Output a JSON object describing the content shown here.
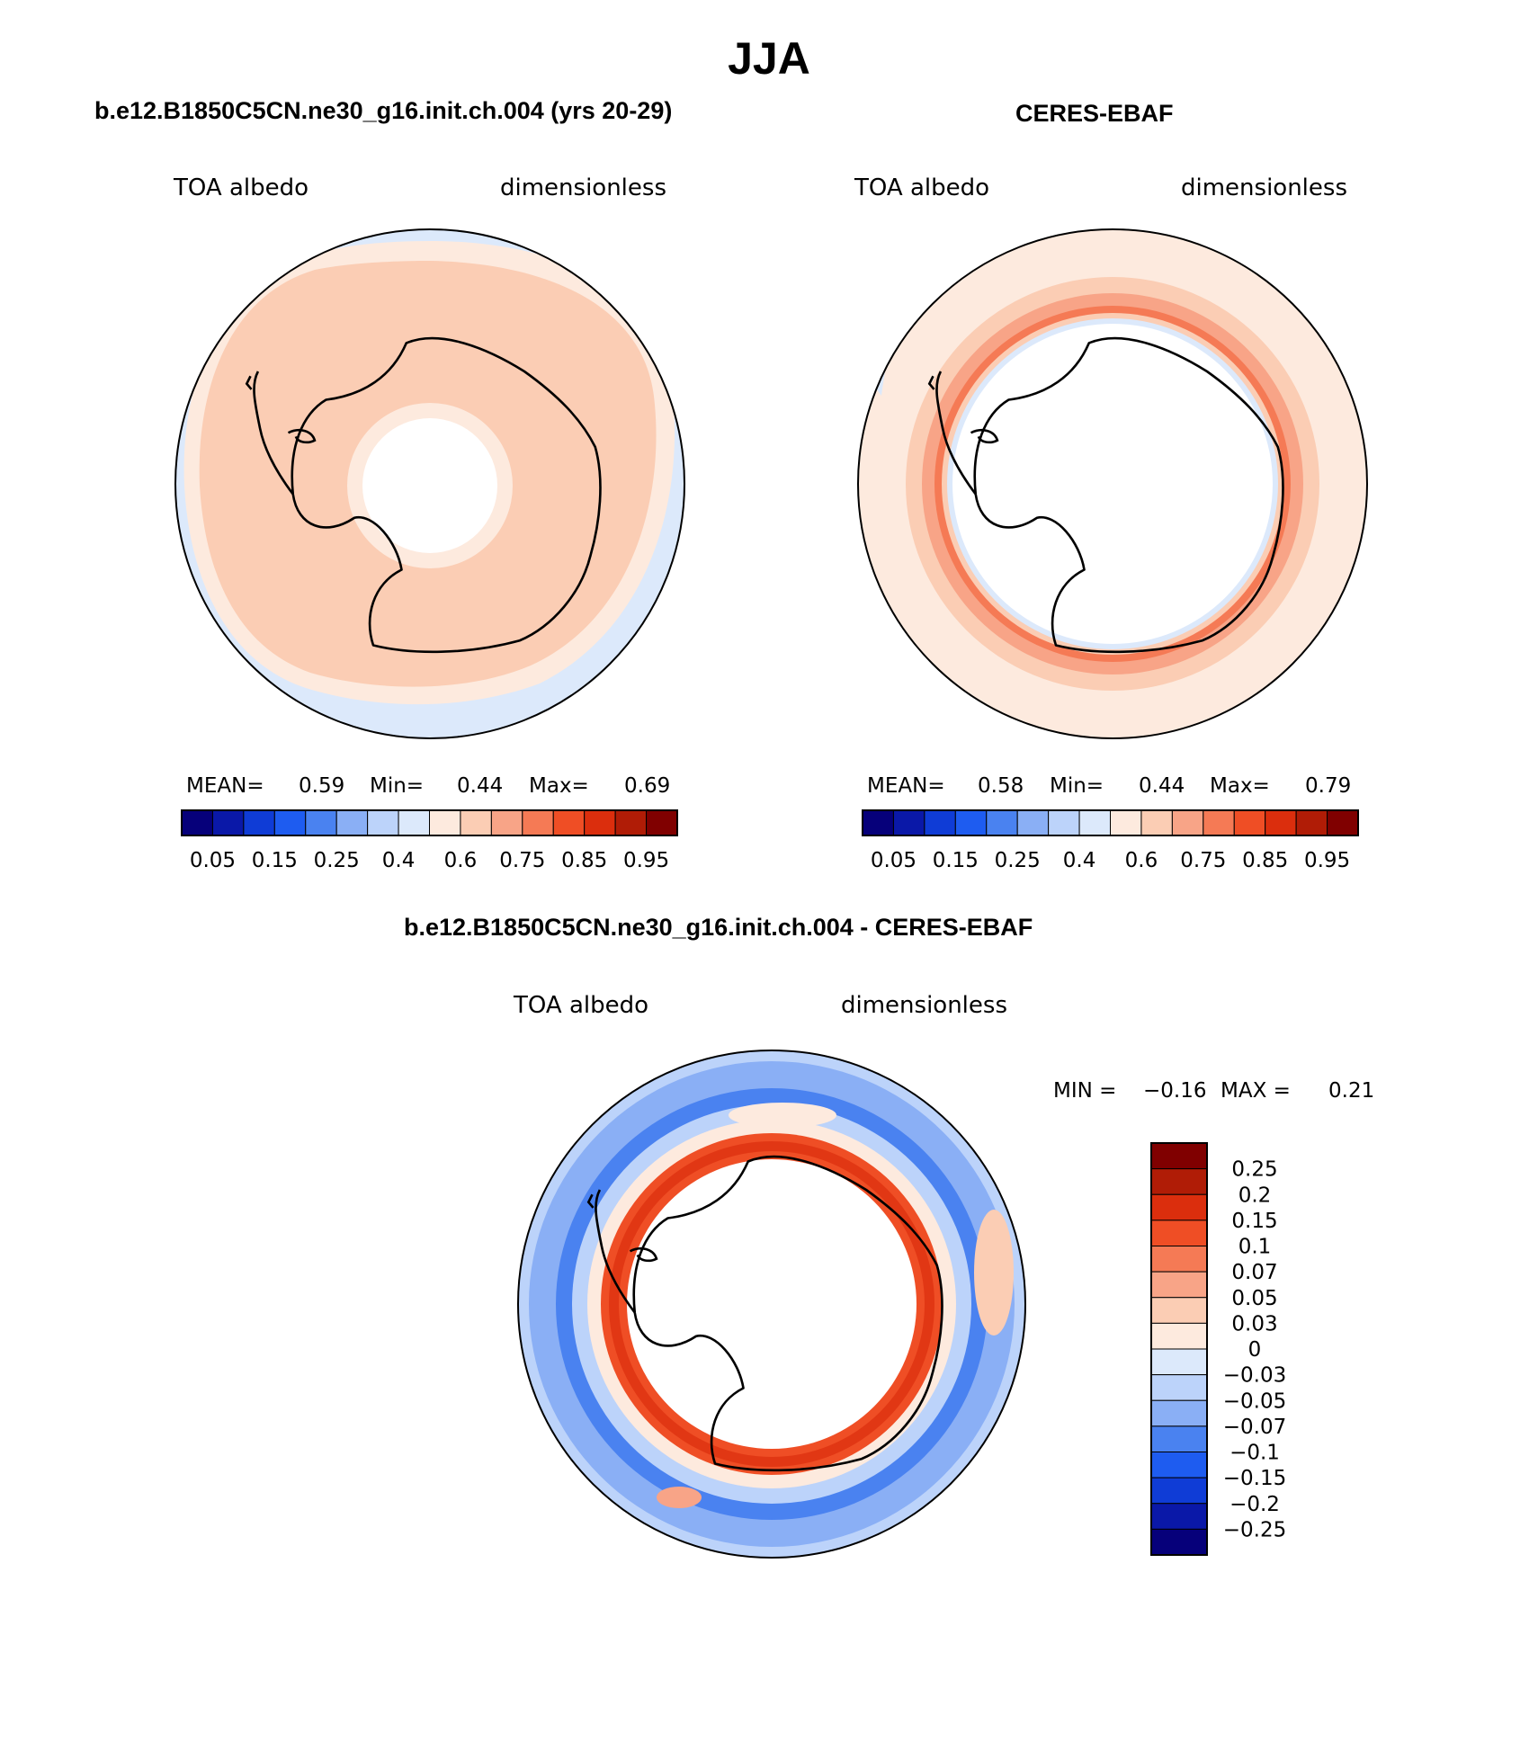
{
  "title": "JJA",
  "panels": [
    {
      "title": "b.e12.B1850C5CN.ne30_g16.init.ch.004 (yrs 20-29)",
      "variable": "TOA albedo",
      "units": "dimensionless",
      "stats": {
        "mean_label": "MEAN=",
        "mean": "0.59",
        "min_label": "Min=",
        "min": "0.44",
        "max_label": "Max=",
        "max": "0.69"
      }
    },
    {
      "title": "CERES-EBAF",
      "variable": "TOA albedo",
      "units": "dimensionless",
      "stats": {
        "mean_label": "MEAN=",
        "mean": "0.58",
        "min_label": "Min=",
        "min": "0.44",
        "max_label": "Max=",
        "max": "0.79"
      }
    },
    {
      "title": "b.e12.B1850C5CN.ne30_g16.init.ch.004 - CERES-EBAF",
      "variable": "TOA albedo",
      "units": "dimensionless",
      "stats": {
        "min_label": "MIN =",
        "min": "−0.16",
        "max_label": "MAX =",
        "max": "0.21"
      }
    }
  ],
  "chart_data": [
    {
      "type": "heatmap",
      "projection": "south polar stereographic",
      "title": "b.e12.B1850C5CN.ne30_g16.init.ch.004 (yrs 20-29)",
      "field": "TOA albedo",
      "units": "dimensionless",
      "mean": 0.59,
      "min": 0.44,
      "max": 0.69,
      "colorbar": {
        "orientation": "horizontal",
        "tick_labels": [
          "0.05",
          "0.15",
          "0.25",
          "0.4",
          "0.6",
          "0.75",
          "0.85",
          "0.95"
        ],
        "colors": [
          "#06007a",
          "#0a18a8",
          "#0f3cd6",
          "#1e5cf0",
          "#4a82f0",
          "#8aaff5",
          "#bcd3fa",
          "#dce9fb",
          "#fdeade",
          "#fbcdb4",
          "#f8a487",
          "#f57a55",
          "#ef4e25",
          "#db2e0d",
          "#b01c06",
          "#800000"
        ]
      },
      "description_values": {
        "outer_ring": 0.4,
        "main_belt": 0.6,
        "inner_ring": 0.5
      }
    },
    {
      "type": "heatmap",
      "projection": "south polar stereographic",
      "title": "CERES-EBAF",
      "field": "TOA albedo",
      "units": "dimensionless",
      "mean": 0.58,
      "min": 0.44,
      "max": 0.79,
      "colorbar": {
        "orientation": "horizontal",
        "tick_labels": [
          "0.05",
          "0.15",
          "0.25",
          "0.4",
          "0.6",
          "0.75",
          "0.85",
          "0.95"
        ],
        "colors": [
          "#06007a",
          "#0a18a8",
          "#0f3cd6",
          "#1e5cf0",
          "#4a82f0",
          "#8aaff5",
          "#bcd3fa",
          "#dce9fb",
          "#fdeade",
          "#fbcdb4",
          "#f8a487",
          "#f57a55",
          "#ef4e25",
          "#db2e0d",
          "#b01c06",
          "#800000"
        ]
      }
    },
    {
      "type": "heatmap",
      "projection": "south polar stereographic",
      "title": "b.e12.B1850C5CN.ne30_g16.init.ch.004 - CERES-EBAF",
      "field": "TOA albedo",
      "units": "dimensionless",
      "min": -0.16,
      "max": 0.21,
      "colorbar": {
        "orientation": "vertical",
        "tick_labels": [
          "0.25",
          "0.2",
          "0.15",
          "0.1",
          "0.07",
          "0.05",
          "0.03",
          "0",
          "−0.03",
          "−0.05",
          "−0.07",
          "−0.1",
          "−0.15",
          "−0.2",
          "−0.25"
        ],
        "colors": [
          "#800000",
          "#b01c06",
          "#db2e0d",
          "#ef4e25",
          "#f57a55",
          "#f8a487",
          "#fbcdb4",
          "#fdeade",
          "#dce9fb",
          "#bcd3fa",
          "#8aaff5",
          "#4a82f0",
          "#1e5cf0",
          "#0f3cd6",
          "#0a18a8",
          "#06007a"
        ]
      }
    }
  ]
}
